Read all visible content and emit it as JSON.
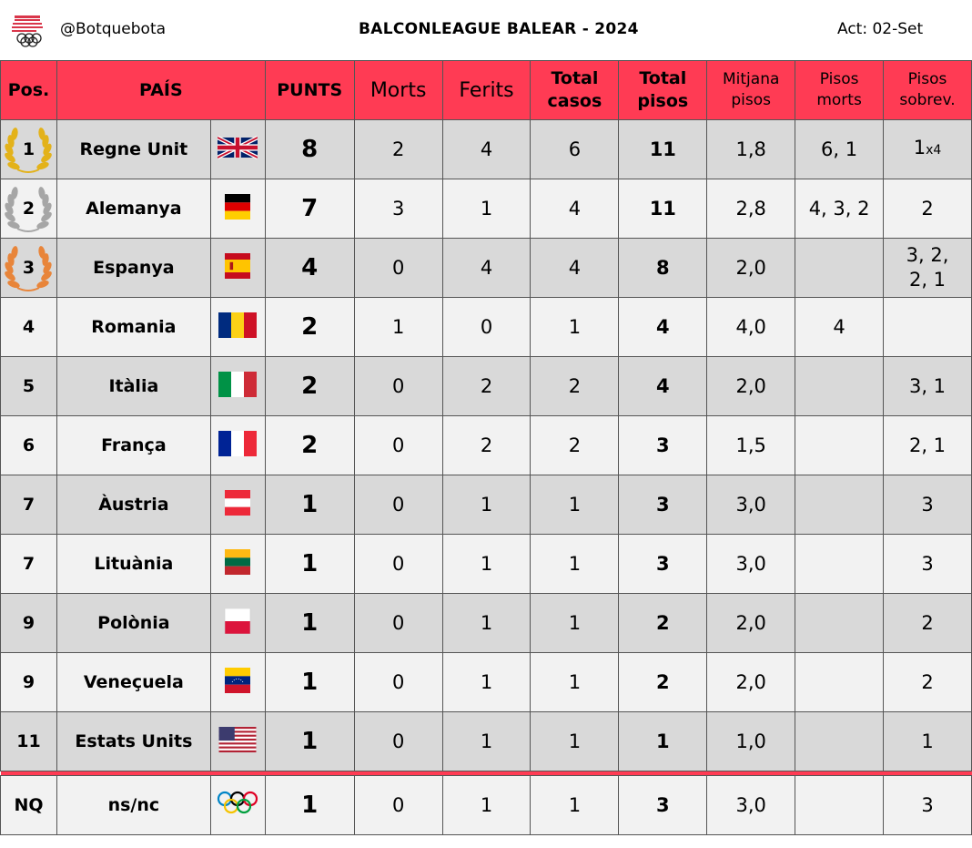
{
  "header": {
    "handle": "@Botquebota",
    "title": "BALCONLEAGUE BALEAR - 2024",
    "updated": "Act: 02-Set"
  },
  "colors": {
    "accent": "#ff3b54",
    "row_dark": "#d9d9d9",
    "row_light": "#f2f2f2",
    "gold": "#e3b21a",
    "silver": "#a6a6a6",
    "bronze": "#e8853a"
  },
  "columns": {
    "pos": "Pos.",
    "country": "PAÍS",
    "points": "PUNTS",
    "deaths": "Morts",
    "injured": "Ferits",
    "total_cases_1": "Total",
    "total_cases_2": "casos",
    "total_floors_1": "Total",
    "total_floors_2": "pisos",
    "avg_floors_1": "Mitjana",
    "avg_floors_2": "pisos",
    "floors_dead_1": "Pisos",
    "floors_dead_2": "morts",
    "floors_surv_1": "Pisos",
    "floors_surv_2": "sobrev."
  },
  "rows": [
    {
      "pos": "1",
      "medal": "gold",
      "country": "Regne Unit",
      "flag": "uk-flag",
      "points": "8",
      "deaths": "2",
      "injured": "4",
      "cases": "6",
      "floors": "11",
      "avg": "1,8",
      "floors_dead": "6, 1",
      "floors_surv": "1",
      "floors_surv_mult": "x4"
    },
    {
      "pos": "2",
      "medal": "silver",
      "country": "Alemanya",
      "flag": "germany-flag",
      "points": "7",
      "deaths": "3",
      "injured": "1",
      "cases": "4",
      "floors": "11",
      "avg": "2,8",
      "floors_dead": "4, 3, 2",
      "floors_surv": "2"
    },
    {
      "pos": "3",
      "medal": "bronze",
      "country": "Espanya",
      "flag": "spain-flag",
      "points": "4",
      "deaths": "0",
      "injured": "4",
      "cases": "4",
      "floors": "8",
      "avg": "2,0",
      "floors_dead": "",
      "floors_surv": "3, 2,",
      "floors_surv_2": "2, 1"
    },
    {
      "pos": "4",
      "country": "Romania",
      "flag": "romania-flag",
      "points": "2",
      "deaths": "1",
      "injured": "0",
      "cases": "1",
      "floors": "4",
      "avg": "4,0",
      "floors_dead": "4",
      "floors_surv": ""
    },
    {
      "pos": "5",
      "country": "Itàlia",
      "flag": "italy-flag",
      "points": "2",
      "deaths": "0",
      "injured": "2",
      "cases": "2",
      "floors": "4",
      "avg": "2,0",
      "floors_dead": "",
      "floors_surv": "3, 1"
    },
    {
      "pos": "6",
      "country": "França",
      "flag": "france-flag",
      "points": "2",
      "deaths": "0",
      "injured": "2",
      "cases": "2",
      "floors": "3",
      "avg": "1,5",
      "floors_dead": "",
      "floors_surv": "2, 1"
    },
    {
      "pos": "7",
      "country": "Àustria",
      "flag": "austria-flag",
      "points": "1",
      "deaths": "0",
      "injured": "1",
      "cases": "1",
      "floors": "3",
      "avg": "3,0",
      "floors_dead": "",
      "floors_surv": "3"
    },
    {
      "pos": "7",
      "country": "Lituània",
      "flag": "lithuania-flag",
      "points": "1",
      "deaths": "0",
      "injured": "1",
      "cases": "1",
      "floors": "3",
      "avg": "3,0",
      "floors_dead": "",
      "floors_surv": "3"
    },
    {
      "pos": "9",
      "country": "Polònia",
      "flag": "poland-flag",
      "points": "1",
      "deaths": "0",
      "injured": "1",
      "cases": "1",
      "floors": "2",
      "avg": "2,0",
      "floors_dead": "",
      "floors_surv": "2"
    },
    {
      "pos": "9",
      "country": "Veneçuela",
      "flag": "venezuela-flag",
      "points": "1",
      "deaths": "0",
      "injured": "1",
      "cases": "1",
      "floors": "2",
      "avg": "2,0",
      "floors_dead": "",
      "floors_surv": "2"
    },
    {
      "pos": "11",
      "country": "Estats Units",
      "flag": "usa-flag",
      "points": "1",
      "deaths": "0",
      "injured": "1",
      "cases": "1",
      "floors": "1",
      "avg": "1,0",
      "floors_dead": "",
      "floors_surv": "1"
    }
  ],
  "nq": {
    "pos": "NQ",
    "country": "ns/nc",
    "flag": "olympic-rings-icon",
    "points": "1",
    "deaths": "0",
    "injured": "1",
    "cases": "1",
    "floors": "3",
    "avg": "3,0",
    "floors_dead": "",
    "floors_surv": "3"
  }
}
